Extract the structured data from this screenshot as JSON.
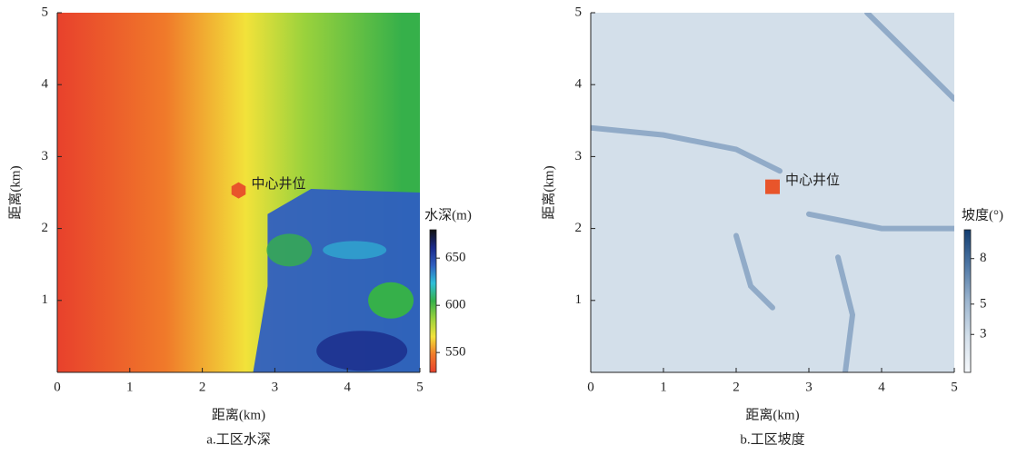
{
  "chart_data": [
    {
      "type": "heatmap",
      "caption": "a.工区水深",
      "xlabel": "距离(km)",
      "ylabel": "距离(km)",
      "xlim": [
        0,
        5
      ],
      "ylim": [
        0,
        5
      ],
      "xticks": [
        0,
        1,
        2,
        3,
        4,
        5
      ],
      "yticks": [
        1,
        2,
        3,
        4,
        5
      ],
      "colorbar": {
        "label": "水深(m)",
        "lim": [
          529,
          680
        ],
        "ticks": [
          550,
          600,
          650
        ],
        "colormap": [
          "#e8412c",
          "#f07a2a",
          "#f2e23a",
          "#9bd23c",
          "#36b04a",
          "#2ebfd8",
          "#2f5fc0",
          "#1a2a8a",
          "#111111"
        ]
      },
      "annotation": {
        "text": "中心井位",
        "x": 2.5,
        "y": 2.53,
        "marker": "hexagon",
        "color": "#e8552b"
      }
    },
    {
      "type": "heatmap",
      "caption": "b.工区坡度",
      "xlabel": "距离(km)",
      "ylabel": "距离(km)",
      "xlim": [
        0,
        5
      ],
      "ylim": [
        0,
        5
      ],
      "xticks": [
        0,
        1,
        2,
        3,
        4,
        5
      ],
      "yticks": [
        1,
        2,
        3,
        4,
        5
      ],
      "colorbar": {
        "label": "坡度(°)",
        "lim": [
          0.5,
          9.9
        ],
        "ticks": [
          3,
          5,
          8
        ],
        "colormap": [
          "#f5f8fb",
          "#d3dfea",
          "#9db6cf",
          "#4f78a6",
          "#123d70"
        ]
      },
      "annotation": {
        "text": "中心井位",
        "x": 2.5,
        "y": 2.58,
        "marker": "square",
        "color": "#e8552b"
      }
    }
  ]
}
